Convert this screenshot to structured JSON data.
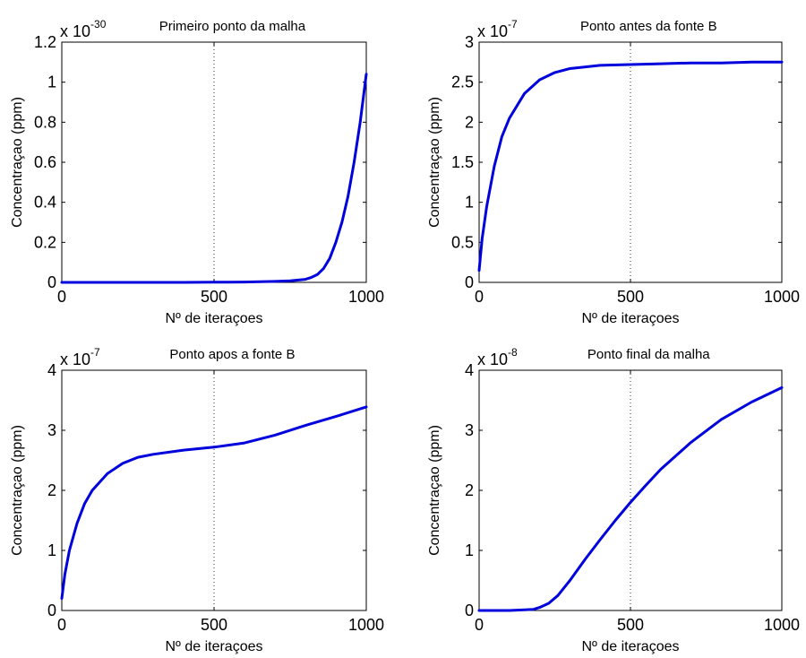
{
  "colors": {
    "line": "#0000dd",
    "axes": "#000000",
    "grid": "#000000"
  },
  "chart_data": [
    {
      "type": "line",
      "title": "Primeiro ponto da malha",
      "xlabel": "Nº de iteraçoes",
      "ylabel": "Concentraçao (ppm)",
      "multiplier": {
        "base": "x 10",
        "exponent": "-30"
      },
      "xlim": [
        0,
        1000
      ],
      "ylim": [
        0,
        1.2
      ],
      "xticks": [
        "0",
        "500",
        "1000"
      ],
      "yticks": [
        "0",
        "0.2",
        "0.4",
        "0.6",
        "0.8",
        "1",
        "1.2"
      ],
      "grid": "x-only",
      "series": [
        {
          "x": [
            0,
            100,
            200,
            300,
            400,
            500,
            600,
            700,
            750,
            800,
            820,
            840,
            860,
            880,
            900,
            920,
            940,
            960,
            980,
            1000
          ],
          "y": [
            0,
            0,
            0,
            0,
            0,
            0.001,
            0.002,
            0.005,
            0.008,
            0.015,
            0.025,
            0.04,
            0.07,
            0.12,
            0.2,
            0.3,
            0.43,
            0.6,
            0.8,
            1.04
          ]
        }
      ]
    },
    {
      "type": "line",
      "title": "Ponto antes da fonte B",
      "xlabel": "Nº de iteraçoes",
      "ylabel": "Concentraçao (ppm)",
      "multiplier": {
        "base": "x 10",
        "exponent": "-7"
      },
      "xlim": [
        0,
        1000
      ],
      "ylim": [
        0,
        3
      ],
      "xticks": [
        "0",
        "500",
        "1000"
      ],
      "yticks": [
        "0",
        "0.5",
        "1",
        "1.5",
        "2",
        "2.5",
        "3"
      ],
      "grid": "x-only",
      "series": [
        {
          "x": [
            0,
            10,
            25,
            50,
            75,
            100,
            150,
            200,
            250,
            300,
            400,
            500,
            600,
            700,
            800,
            900,
            1000
          ],
          "y": [
            0.15,
            0.55,
            0.95,
            1.45,
            1.82,
            2.05,
            2.36,
            2.53,
            2.62,
            2.67,
            2.71,
            2.72,
            2.73,
            2.74,
            2.74,
            2.75,
            2.75
          ]
        }
      ]
    },
    {
      "type": "line",
      "title": "Ponto apos a fonte B",
      "xlabel": "Nº de iteraçoes",
      "ylabel": "Concentraçao (ppm)",
      "multiplier": {
        "base": "x 10",
        "exponent": "-7"
      },
      "xlim": [
        0,
        1000
      ],
      "ylim": [
        0,
        4
      ],
      "xticks": [
        "0",
        "500",
        "1000"
      ],
      "yticks": [
        "0",
        "1",
        "2",
        "3",
        "4"
      ],
      "grid": "x-only",
      "series": [
        {
          "x": [
            0,
            10,
            25,
            50,
            75,
            100,
            150,
            200,
            250,
            300,
            400,
            500,
            600,
            700,
            800,
            900,
            1000
          ],
          "y": [
            0.2,
            0.6,
            1.0,
            1.45,
            1.78,
            2.0,
            2.28,
            2.45,
            2.55,
            2.6,
            2.67,
            2.72,
            2.79,
            2.92,
            3.08,
            3.23,
            3.39
          ]
        }
      ]
    },
    {
      "type": "line",
      "title": "Ponto final da malha",
      "xlabel": "Nº de iteraçoes",
      "ylabel": "Concentraçao (ppm)",
      "multiplier": {
        "base": "x 10",
        "exponent": "-8"
      },
      "xlim": [
        0,
        1000
      ],
      "ylim": [
        0,
        4
      ],
      "xticks": [
        "0",
        "500",
        "1000"
      ],
      "yticks": [
        "0",
        "1",
        "2",
        "3",
        "4"
      ],
      "grid": "x-only",
      "series": [
        {
          "x": [
            0,
            100,
            150,
            180,
            200,
            230,
            260,
            300,
            350,
            400,
            450,
            500,
            550,
            600,
            700,
            800,
            900,
            1000
          ],
          "y": [
            0,
            0,
            0.01,
            0.02,
            0.05,
            0.12,
            0.25,
            0.5,
            0.85,
            1.18,
            1.5,
            1.8,
            2.08,
            2.35,
            2.8,
            3.18,
            3.47,
            3.71
          ]
        }
      ]
    }
  ]
}
